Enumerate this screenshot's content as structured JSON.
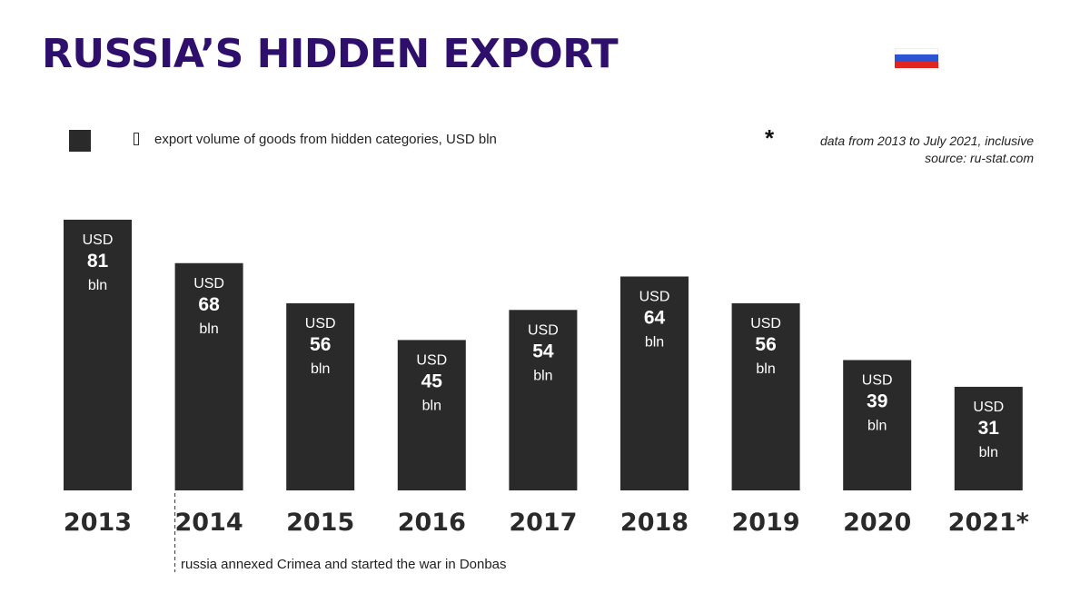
{
  "header": {
    "title": "RUSSIA’S HIDDEN EXPORT",
    "flag_icon": "russia-flag-icon",
    "flag_colors": [
      "#ffffff",
      "#2c55d6",
      "#e0241f"
    ]
  },
  "legend": {
    "swatch_color": "#2a2a2a",
    "marker_icon": "unknown-glyph-icon",
    "text": "export volume of goods from hidden categories, USD bln"
  },
  "note": {
    "asterisk": "*",
    "line1": "data from 2013 to July 2021, inclusive",
    "line2": "source: ru-stat.com"
  },
  "chart_data": {
    "type": "bar",
    "categories": [
      "2013",
      "2014",
      "2015",
      "2016",
      "2017",
      "2018",
      "2019",
      "2020",
      "2021*"
    ],
    "values": [
      81,
      68,
      56,
      45,
      54,
      64,
      56,
      39,
      31
    ],
    "unit_prefix": "USD",
    "unit_suffix": "bln",
    "bar_color": "#2a2a2a",
    "label_color": "#ffffff",
    "legend": "export volume of goods from hidden categories, USD bln",
    "annotation": {
      "category": "2014",
      "text": "russia annexed Crimea and started the war in Donbas"
    }
  }
}
